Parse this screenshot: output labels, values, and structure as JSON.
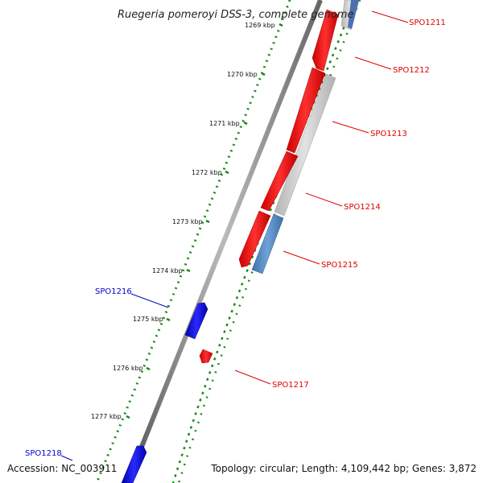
{
  "title": "Ruegeria pomeroyi DSS-3, complete genome",
  "accession": "Accession: NC_003911",
  "summary": "Topology: circular; Length: 4,109,442 bp; Genes: 3,872",
  "ticks": [
    "1269 kbp",
    "1270 kbp",
    "1271 kbp",
    "1272 kbp",
    "1273 kbp",
    "1274 kbp",
    "1275 kbp",
    "1276 kbp",
    "1277 kbp"
  ],
  "genes": [
    {
      "id": "SPO1211",
      "color": "#e00000"
    },
    {
      "id": "SPO1212",
      "color": "#e00000"
    },
    {
      "id": "SPO1213",
      "color": "#e00000"
    },
    {
      "id": "SPO1214",
      "color": "#e00000"
    },
    {
      "id": "SPO1215",
      "color": "#e00000"
    },
    {
      "id": "SPO1216",
      "color": "#0000cc"
    },
    {
      "id": "SPO1217",
      "color": "#e00000"
    },
    {
      "id": "SPO1218",
      "color": "#0000cc"
    }
  ],
  "colors": {
    "forward_gene": "#ff0000",
    "reverse_gene": "#0000ff",
    "orthologue_blue": "#4f86c0",
    "orthologue_gray": "#c8c8c8",
    "backbone": "#777777",
    "dotted_ring": "#1a8a1a"
  }
}
